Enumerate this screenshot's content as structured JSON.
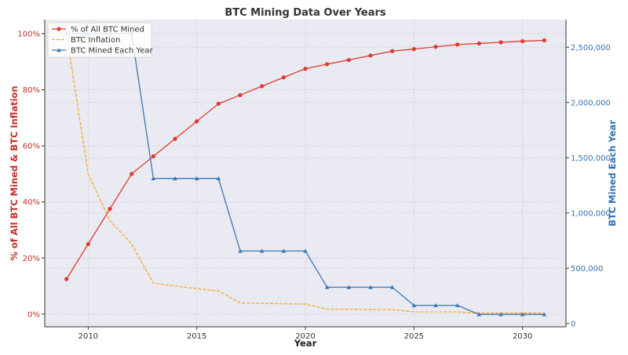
{
  "chart_data": {
    "type": "line",
    "title": "BTC Mining Data Over Years",
    "xlabel": "Year",
    "ylabel_left": "% of All BTC Mined & BTC Inflation",
    "ylabel_right": "BTC Mined Each Year",
    "x": [
      2009,
      2010,
      2011,
      2012,
      2013,
      2014,
      2015,
      2016,
      2017,
      2018,
      2019,
      2020,
      2021,
      2022,
      2023,
      2024,
      2025,
      2026,
      2027,
      2028,
      2029,
      2030,
      2031
    ],
    "xlim": [
      2008,
      2032
    ],
    "xticks": [
      2010,
      2015,
      2020,
      2025,
      2030
    ],
    "ylim_left": [
      -4.5,
      105
    ],
    "yticks_left": [
      0,
      20,
      40,
      60,
      80,
      100
    ],
    "ylim_right": [
      -30000,
      2750000
    ],
    "yticks_right": [
      0,
      500000,
      1000000,
      1500000,
      2000000,
      2500000
    ],
    "grid": true,
    "legend_position": "top-left",
    "series": [
      {
        "name": "% of All BTC Mined",
        "axis": "left",
        "color": "#e03a2f",
        "style": "solid",
        "marker": "circle",
        "values": [
          12.5,
          25.0,
          37.5,
          50.0,
          56.25,
          62.5,
          68.75,
          75.0,
          78.1,
          81.25,
          84.4,
          87.5,
          89.1,
          90.6,
          92.2,
          93.75,
          94.5,
          95.3,
          96.1,
          96.5,
          96.9,
          97.3,
          97.6
        ]
      },
      {
        "name": "BTC Inflation",
        "axis": "left",
        "color": "#f5a623",
        "style": "dashed",
        "marker": "none",
        "values": [
          100,
          50.0,
          33.3,
          25.0,
          11.1,
          10.0,
          9.1,
          8.3,
          4.0,
          3.85,
          3.7,
          3.6,
          1.8,
          1.75,
          1.7,
          1.65,
          0.8,
          0.8,
          0.8,
          0.4,
          0.4,
          0.4,
          0.4
        ]
      },
      {
        "name": "BTC Mined Each Year",
        "axis": "right",
        "color": "#3a78b8",
        "style": "solid",
        "marker": "triangle",
        "values": [
          2625000,
          2625000,
          2625000,
          2625000,
          1312500,
          1312500,
          1312500,
          1312500,
          656250,
          656250,
          656250,
          656250,
          328125,
          328125,
          328125,
          328125,
          164062,
          164062,
          164062,
          82031,
          82031,
          82031,
          82031
        ]
      }
    ],
    "colors": {
      "left_axis": "#c0302b",
      "right_axis": "#3370b0",
      "plot_background": "#eaeaf2",
      "grid": "#cccccc"
    }
  }
}
